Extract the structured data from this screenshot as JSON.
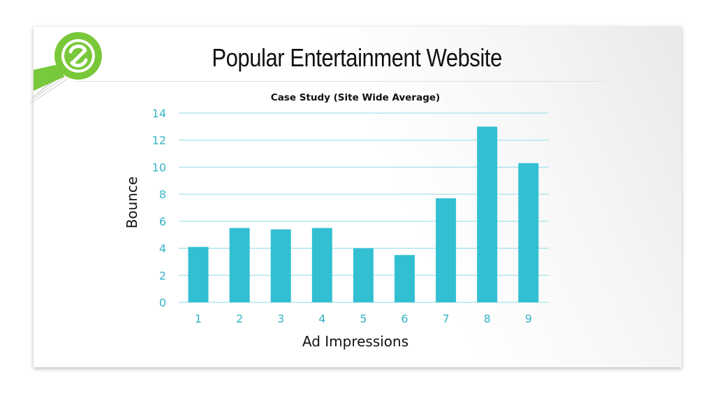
{
  "slide": {
    "title": "Popular Entertainment Website"
  },
  "logo": {
    "icon": "logo-magnifier-icon"
  },
  "chart_data": {
    "type": "bar",
    "title": "Case Study (Site Wide Average)",
    "xlabel": "Ad Impressions",
    "ylabel": "Bounce",
    "categories": [
      "1",
      "2",
      "3",
      "4",
      "5",
      "6",
      "7",
      "8",
      "9"
    ],
    "values": [
      4.1,
      5.5,
      5.4,
      5.5,
      4.0,
      3.5,
      7.7,
      13.0,
      10.3
    ],
    "ylim": [
      0,
      14
    ],
    "yticks": [
      0,
      2,
      4,
      6,
      8,
      10,
      12,
      14
    ],
    "grid": true,
    "legend": "none",
    "bar_color": "#33bfd2",
    "tick_color": "#36b4c6",
    "grid_color": "#a6e2ea"
  }
}
